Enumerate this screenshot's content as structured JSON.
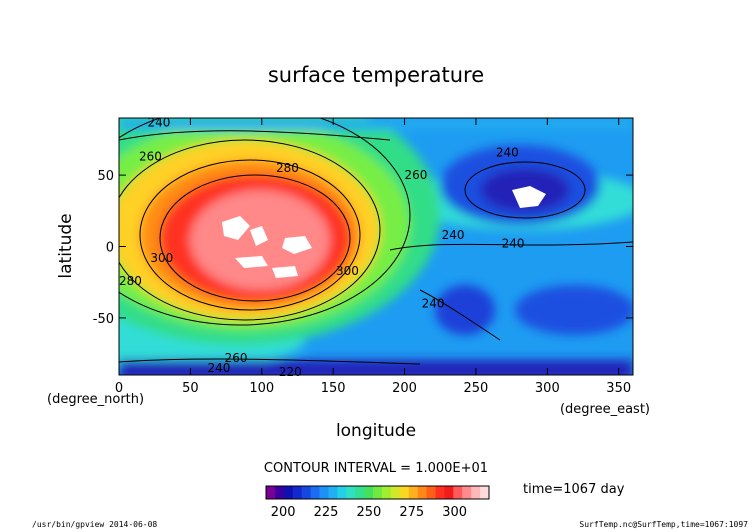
{
  "chart_data": {
    "type": "heatmap",
    "title": "surface temperature",
    "xlabel": "longitude",
    "ylabel": "latitude",
    "x_units": "(degree_east)",
    "y_units": "(degree_north)",
    "xlim": [
      0,
      360
    ],
    "ylim": [
      -90,
      90
    ],
    "x_ticks": [
      0,
      50,
      100,
      150,
      200,
      250,
      300,
      350
    ],
    "y_ticks": [
      50,
      0,
      -50
    ],
    "contour_interval_text": "CONTOUR INTERVAL = 1.000E+01",
    "contour_labels": [
      {
        "text": "240",
        "x": 28,
        "y": 87
      },
      {
        "text": "260",
        "x": 22,
        "y": 63
      },
      {
        "text": "280",
        "x": 118,
        "y": 55
      },
      {
        "text": "260",
        "x": 208,
        "y": 50
      },
      {
        "text": "240",
        "x": 272,
        "y": 66
      },
      {
        "text": "300",
        "x": 30,
        "y": -8
      },
      {
        "text": "280",
        "x": 8,
        "y": -24
      },
      {
        "text": "300",
        "x": 160,
        "y": -17
      },
      {
        "text": "240",
        "x": 234,
        "y": 8
      },
      {
        "text": "240",
        "x": 276,
        "y": 2
      },
      {
        "text": "240",
        "x": 220,
        "y": -40
      },
      {
        "text": "260",
        "x": 82,
        "y": -78
      },
      {
        "text": "240",
        "x": 70,
        "y": -85
      },
      {
        "text": "220",
        "x": 120,
        "y": -88
      }
    ],
    "colorbar": {
      "ticks": [
        200,
        225,
        250,
        275,
        300
      ],
      "min": 190,
      "max": 320
    },
    "time_label": "time=1067 day",
    "footer_left": "/usr/bin/gpview  2014-06-08",
    "footer_right": "SurfTemp.nc@SurfTemp,time=1067:1097"
  }
}
